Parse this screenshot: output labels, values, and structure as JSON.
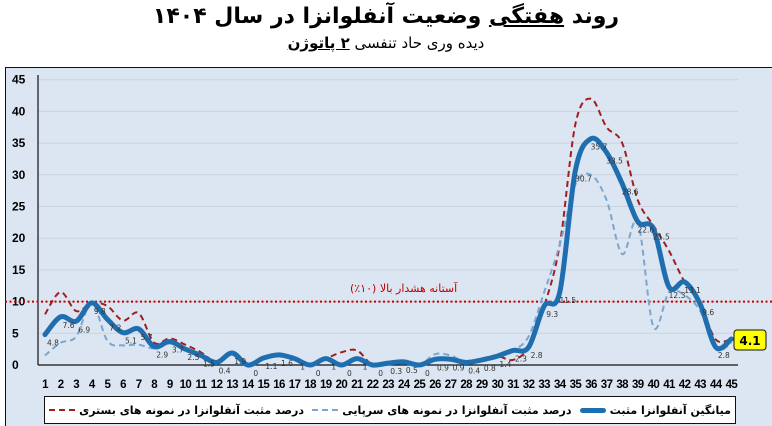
{
  "title": {
    "part1": "روند",
    "part2": "هفتگی",
    "part3": "وضعیت آنفلوانزا در سال ۱۴۰۴"
  },
  "subtitle": {
    "part1": "دیده وری حاد تنفسی",
    "part2": "۲ پاتوژن"
  },
  "threshold_label": "آستانه هشدار بالا (۱۰٪)",
  "last_value_badge": "4.1",
  "legend": {
    "avg": "میانگین آنفلوانزا مثبت",
    "outpatient": "درصد مثبت آنفلوانزا در نمونه های سرپایی",
    "inpatient": "درصد مثبت آنفلوانزا در نمونه های بستری"
  },
  "colors": {
    "avg": "#1f6fb0",
    "outpatient": "#7ba6d0",
    "inpatient": "#a01e1e",
    "threshold": "#c00000",
    "plot_bg": "#dce6f2",
    "grid": "#c9d3de",
    "badge_bg": "#ffff00"
  },
  "chart_data": {
    "type": "line",
    "title": "روند هفتگی وضعیت آنفلوانزا در سال ۱۴۰۴",
    "subtitle": "دیده وری حاد تنفسی ۲ پاتوژن",
    "xlabel": "",
    "ylabel": "",
    "ylim": [
      0,
      45
    ],
    "yticks": [
      0,
      5,
      10,
      15,
      20,
      25,
      30,
      35,
      40,
      45
    ],
    "grid": true,
    "legend_position": "bottom",
    "x": [
      1,
      2,
      3,
      4,
      5,
      6,
      7,
      8,
      9,
      10,
      11,
      12,
      13,
      14,
      15,
      16,
      17,
      18,
      19,
      20,
      21,
      22,
      23,
      24,
      25,
      26,
      27,
      28,
      29,
      30,
      31,
      32,
      33,
      34,
      35,
      36,
      37,
      38,
      39,
      40,
      41,
      42,
      43,
      44,
      45
    ],
    "series": [
      {
        "name": "میانگین آنفلوانزا مثبت",
        "style": "solid-thick",
        "values": [
          4.8,
          7.6,
          6.9,
          9.8,
          7.2,
          5.1,
          5.7,
          2.9,
          3.7,
          2.5,
          1.5,
          0.4,
          1.9,
          0,
          1.1,
          1.6,
          1,
          0,
          1,
          0,
          1,
          0,
          0.3,
          0.5,
          0,
          0.9,
          0.9,
          0.4,
          0.8,
          1.4,
          2.3,
          2.8,
          9.3,
          11.5,
          30.7,
          35.7,
          33.5,
          28.6,
          22.6,
          21.5,
          12.3,
          13.1,
          9.6,
          2.8,
          4.1
        ],
        "labels_shown": true
      },
      {
        "name": "درصد مثبت آنفلوانزا در نمونه های سرپایی",
        "style": "dashed-light-blue",
        "values": [
          1.5,
          3.5,
          4.5,
          9.8,
          3.8,
          3.1,
          3.2,
          2.6,
          3.4,
          2.5,
          1.2,
          0.3,
          1.9,
          0,
          1.1,
          1.6,
          1,
          0,
          0.8,
          0,
          0.8,
          0,
          0.2,
          0.5,
          0,
          1.7,
          1.5,
          0.4,
          0.8,
          1.4,
          2.3,
          4.5,
          11.5,
          19,
          28.5,
          30,
          26,
          17.5,
          22.5,
          6,
          11.5,
          11,
          8.5,
          2.5,
          3.5
        ]
      },
      {
        "name": "درصد مثبت آنفلوانزا در نمونه های بستری",
        "style": "dashed-dark-red",
        "values": [
          8,
          11.5,
          8.5,
          9.8,
          9.3,
          7,
          8.2,
          3.5,
          4.2,
          3.2,
          2,
          0.5,
          2,
          0,
          1.1,
          1.8,
          1,
          0,
          1,
          2,
          2.3,
          0,
          0.4,
          0.6,
          0,
          0.9,
          1.1,
          0.4,
          0.8,
          1.4,
          0.8,
          2.8,
          9.3,
          19,
          38,
          42,
          37.5,
          35,
          26,
          22,
          18,
          13.1,
          9.6,
          4,
          4.1
        ]
      },
      {
        "name": "آستانه هشدار بالا (۱۰٪)",
        "style": "dotted-red",
        "values": "constant-10"
      }
    ],
    "annotations": [
      "آستانه هشدار بالا (۱۰٪)",
      "4.1"
    ]
  }
}
